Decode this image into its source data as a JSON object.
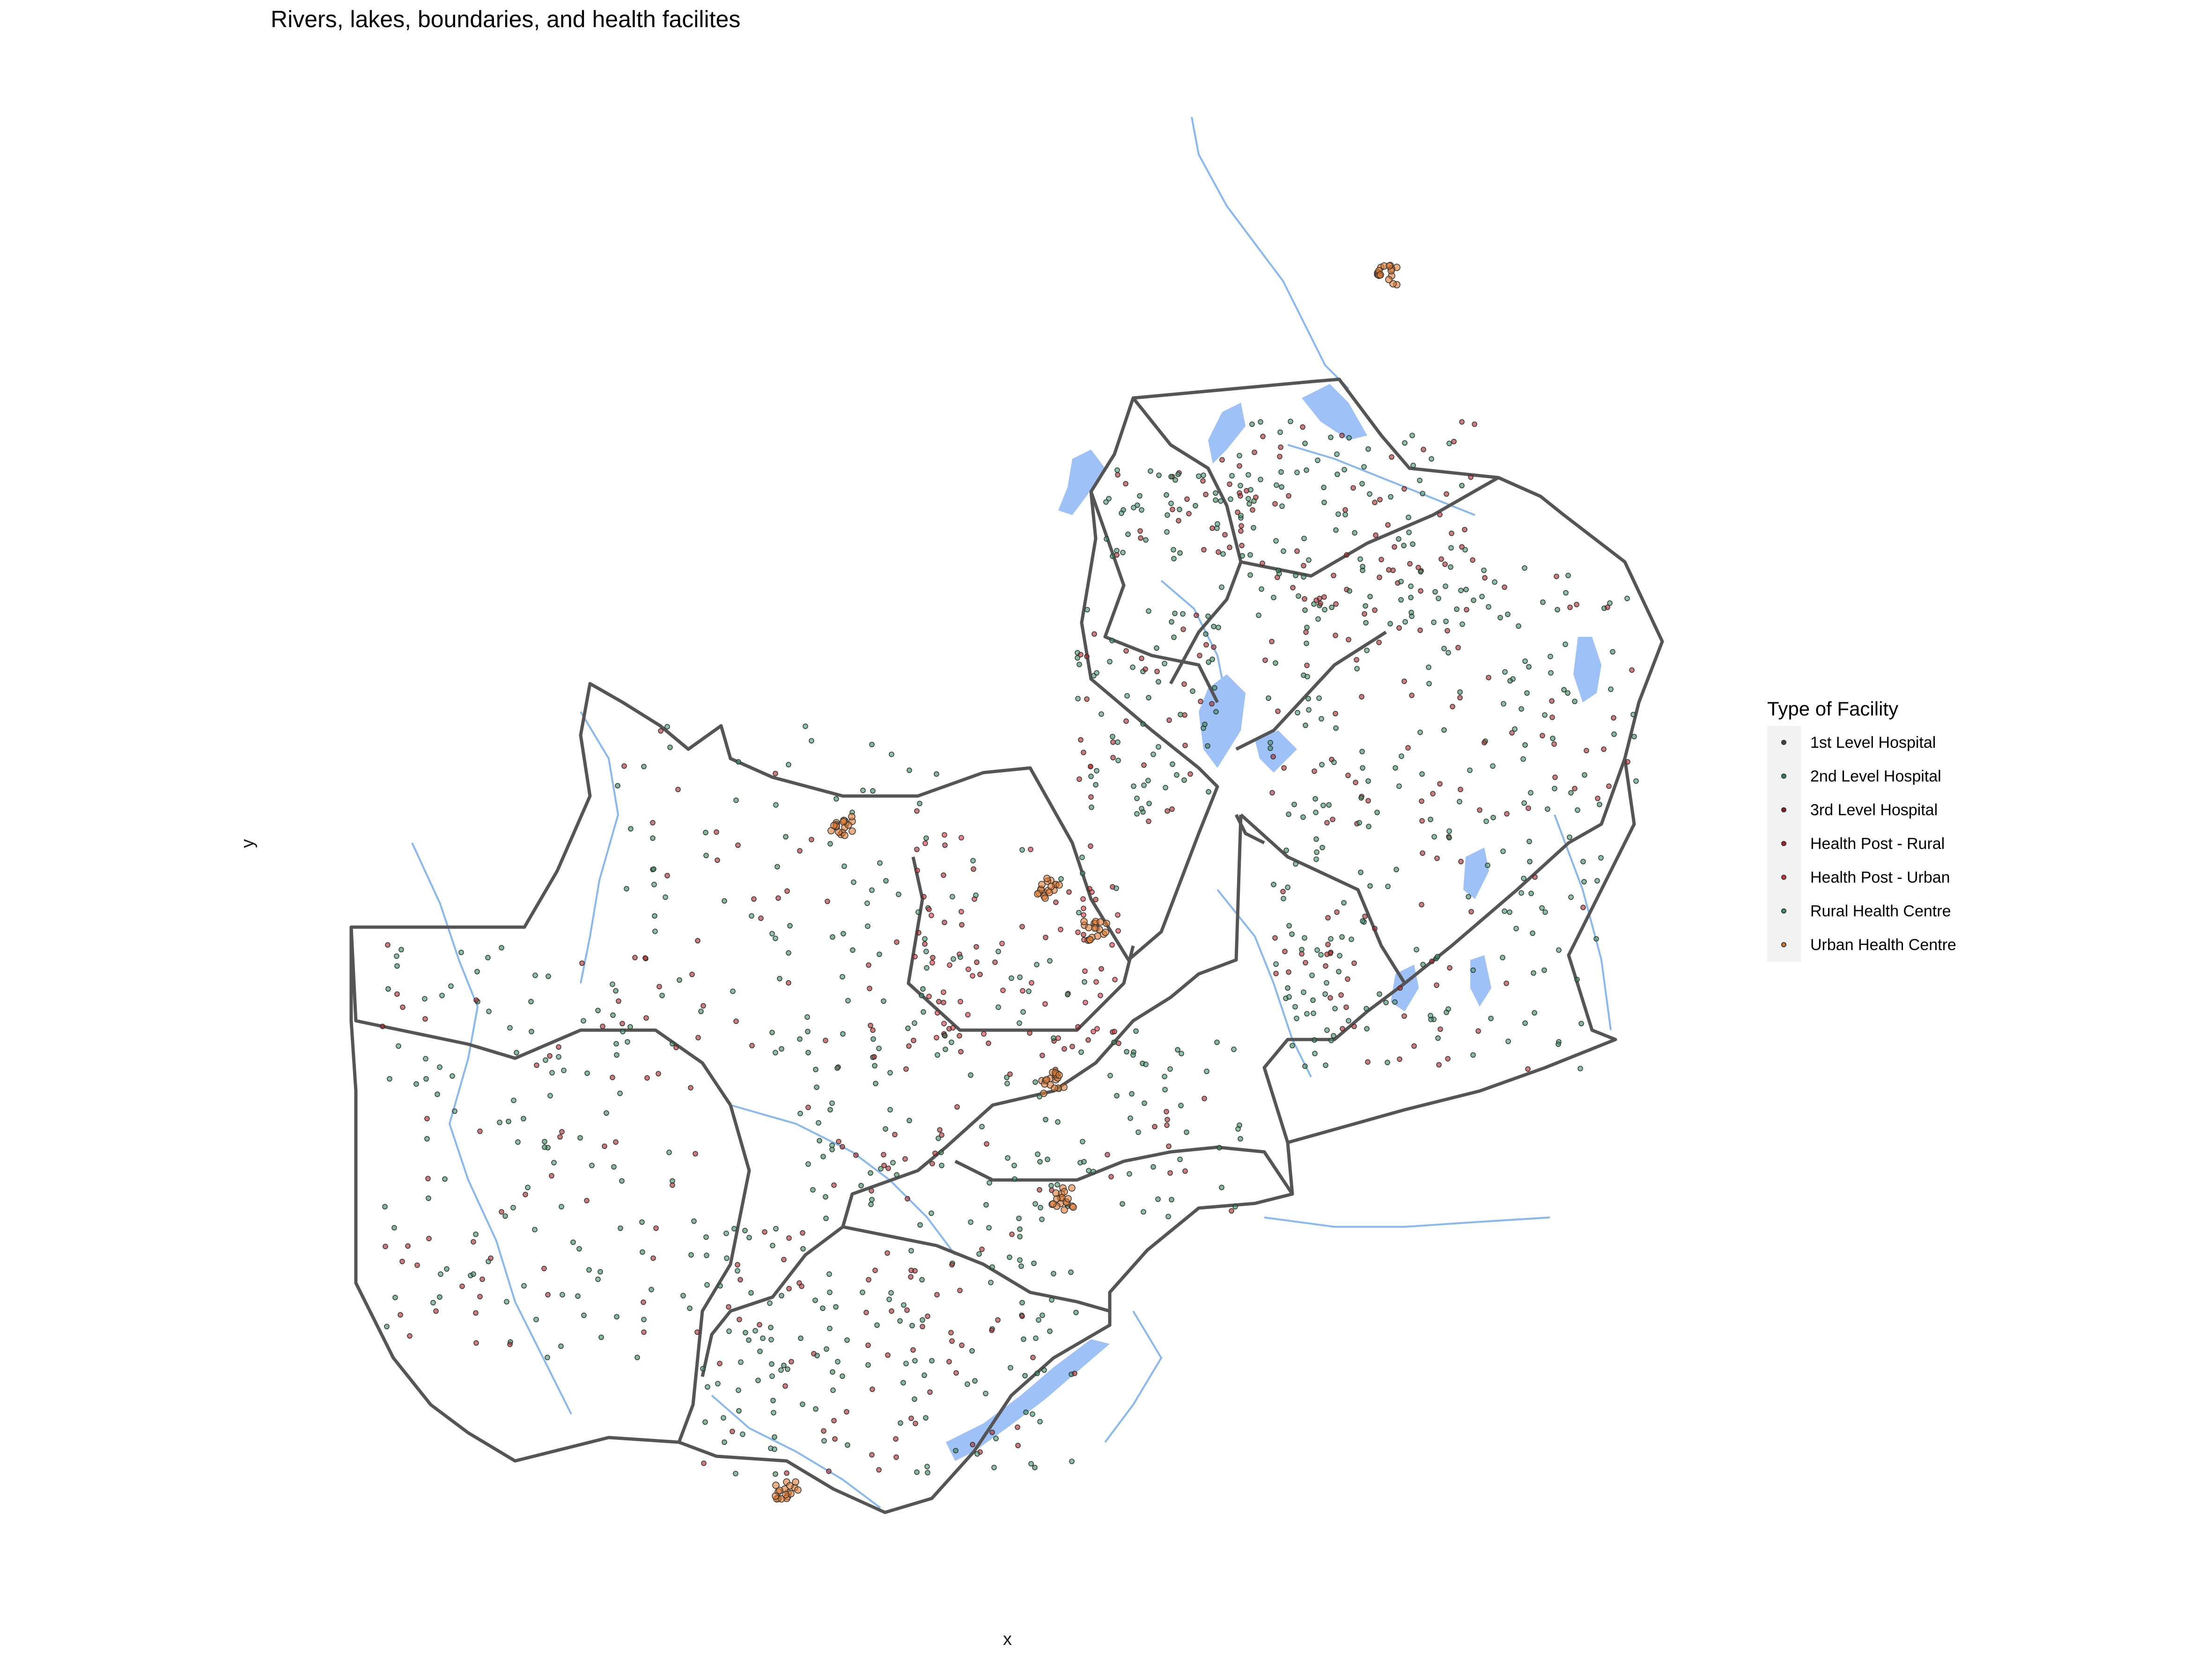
{
  "title": "Rivers, lakes, boundaries, and health facilites",
  "xlabel": "x",
  "ylabel": "y",
  "legend": {
    "title": "Type of Facility",
    "placement": "right",
    "items": [
      {
        "label": "1st Level Hospital",
        "color": "#444444"
      },
      {
        "label": "2nd Level Hospital",
        "color": "#2e8b57"
      },
      {
        "label": "3rd Level Hospital",
        "color": "#8b1a1a"
      },
      {
        "label": "Health Post - Rural",
        "color": "#b22222"
      },
      {
        "label": "Health Post - Urban",
        "color": "#e0303a"
      },
      {
        "label": "Rural Health Centre",
        "color": "#3a9a6a"
      },
      {
        "label": "Urban Health Centre",
        "color": "#e07a30"
      }
    ]
  },
  "colors": {
    "boundary": "#555555",
    "water": "#9ec2f7",
    "river": "#8ab8f0"
  }
}
